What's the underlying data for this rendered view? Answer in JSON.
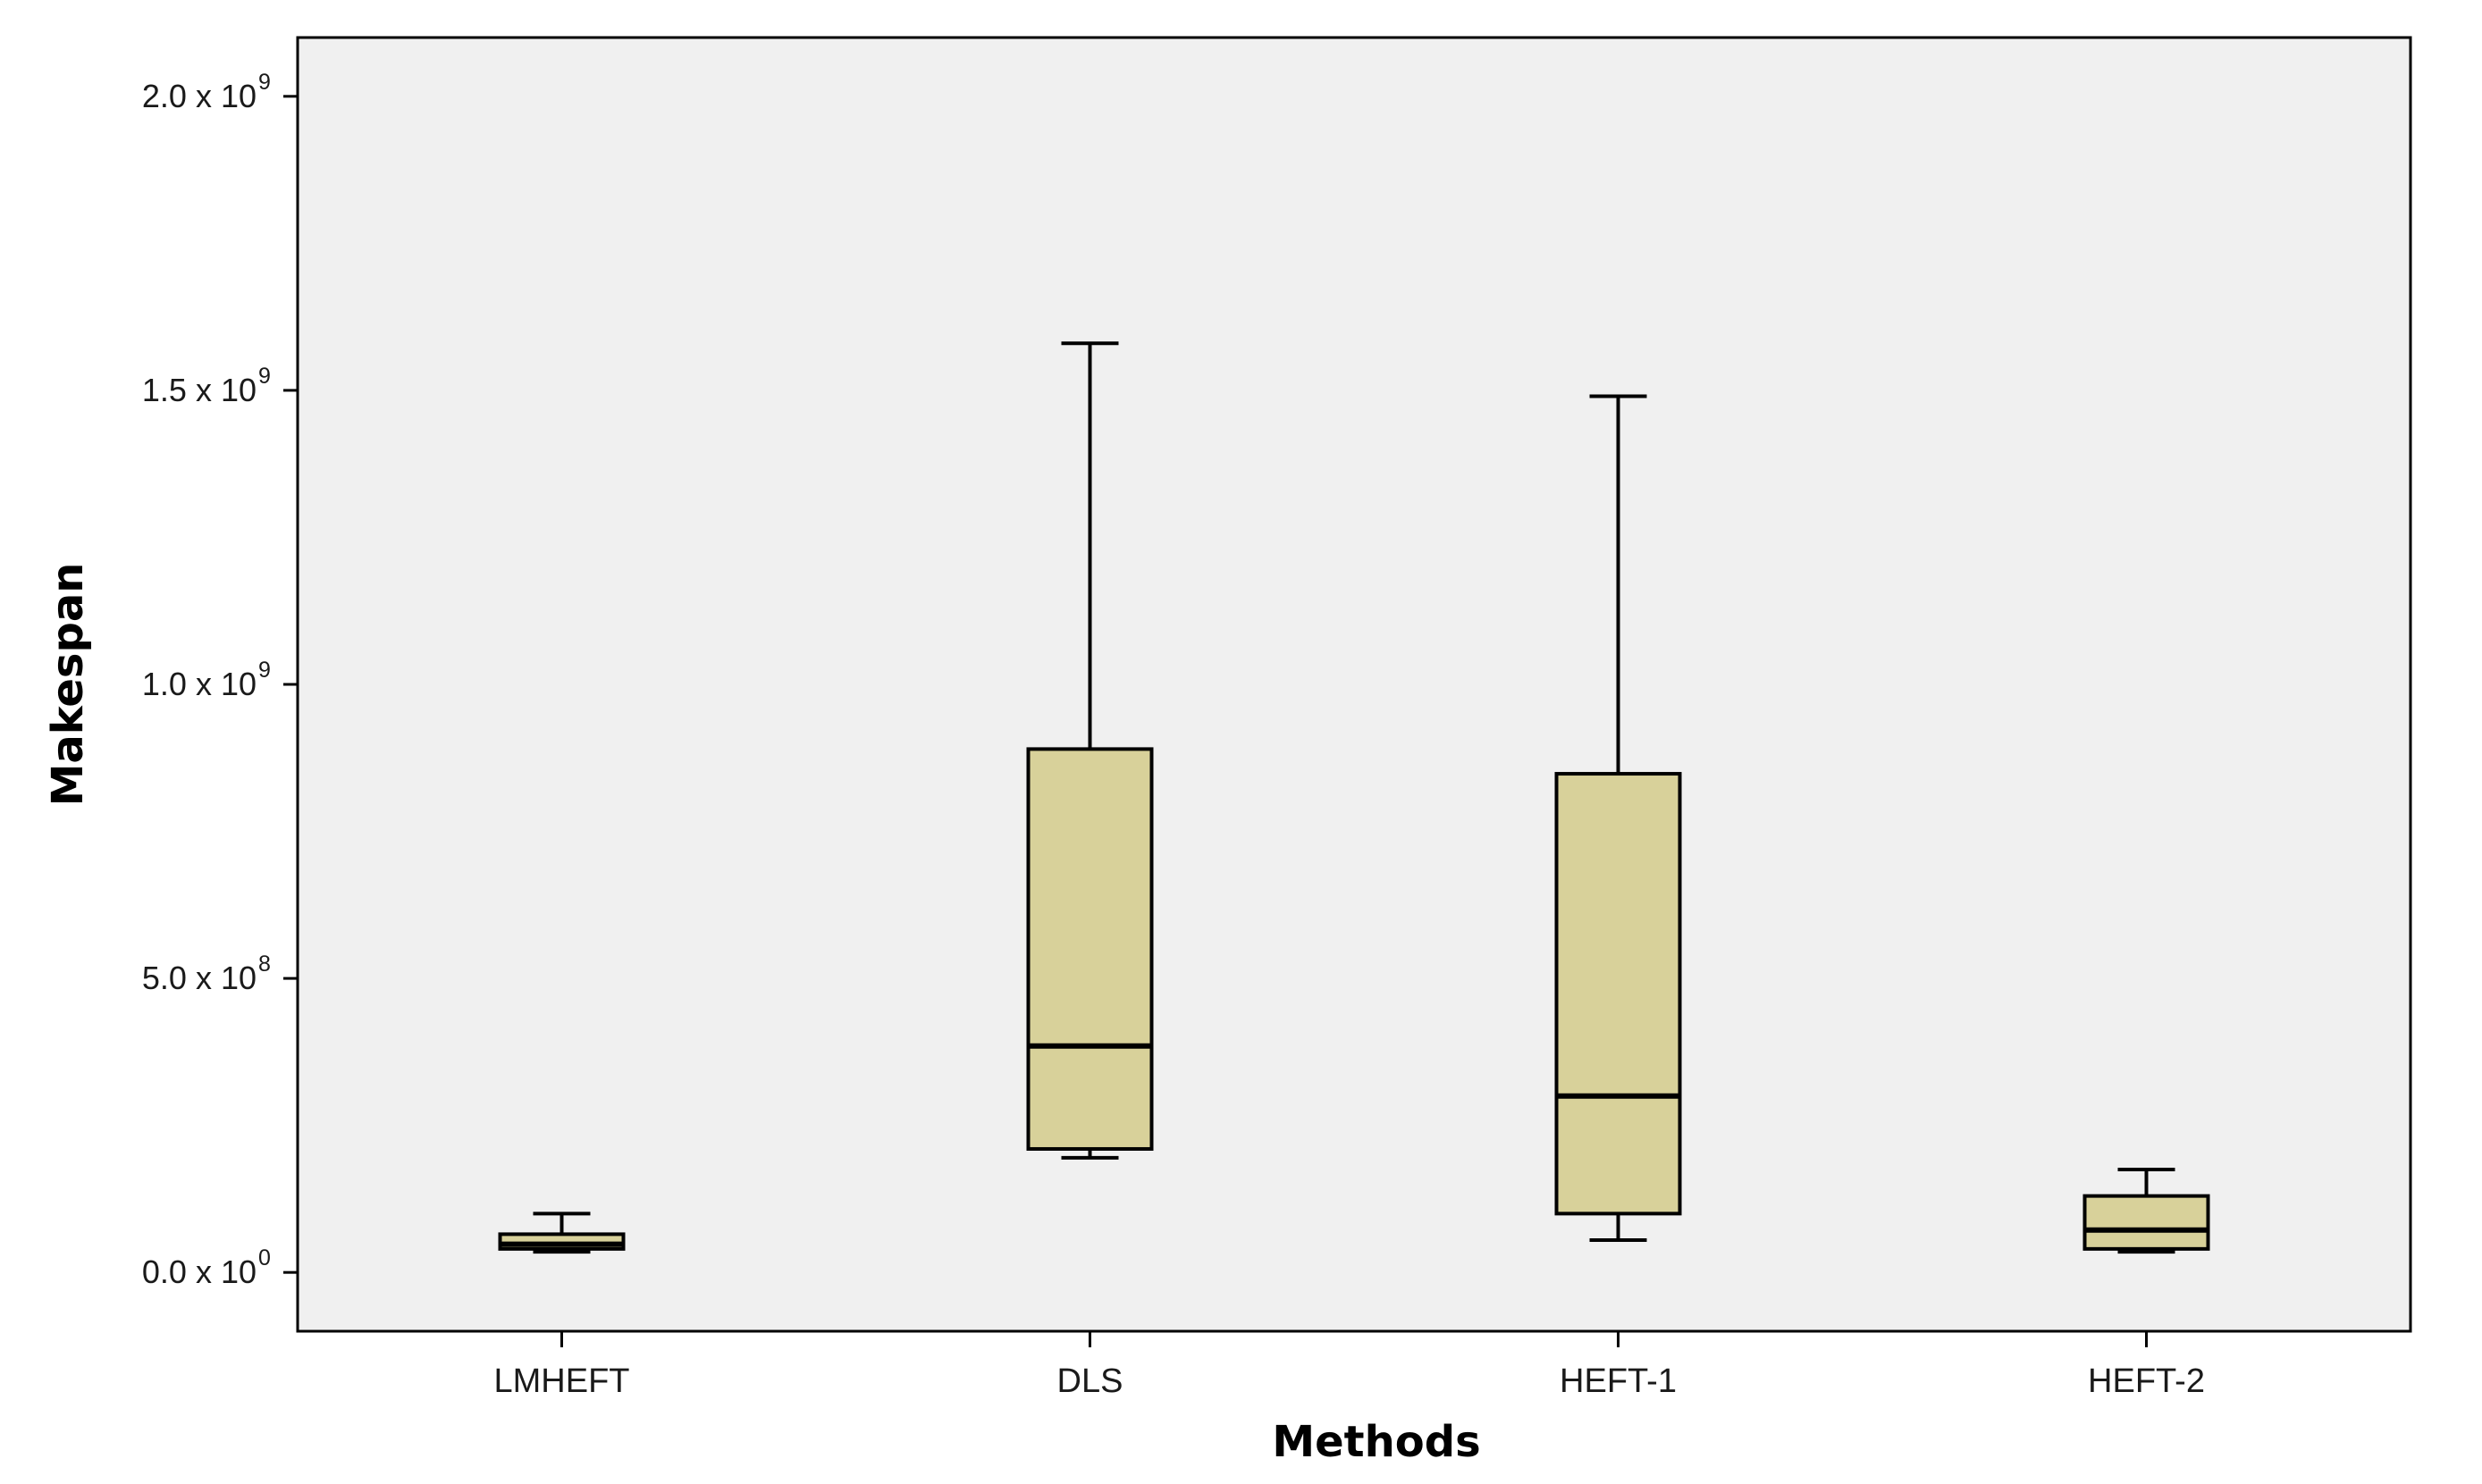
{
  "chart_data": {
    "type": "boxplot",
    "xlabel": "Methods",
    "ylabel": "Makespan",
    "ylim": [
      -100000000,
      2100000000
    ],
    "categories": [
      "LMHEFT",
      "DLS",
      "HEFT-1",
      "HEFT-2"
    ],
    "y_ticks": [
      {
        "value": 0,
        "mantissa": "0.0 x 10",
        "exp": "0"
      },
      {
        "value": 500000000,
        "mantissa": "5.0 x 10",
        "exp": "8"
      },
      {
        "value": 1000000000,
        "mantissa": "1.0 x 10",
        "exp": "9"
      },
      {
        "value": 1500000000,
        "mantissa": "1.5 x 10",
        "exp": "9"
      },
      {
        "value": 2000000000,
        "mantissa": "2.0 x 10",
        "exp": "9"
      }
    ],
    "boxes": [
      {
        "category": "LMHEFT",
        "min": 35000000,
        "q1": 40000000,
        "median": 48000000,
        "q3": 65000000,
        "max": 100000000
      },
      {
        "category": "DLS",
        "min": 195000000,
        "q1": 210000000,
        "median": 385000000,
        "q3": 890000000,
        "max": 1580000000
      },
      {
        "category": "HEFT-1",
        "min": 55000000,
        "q1": 100000000,
        "median": 300000000,
        "q3": 848000000,
        "max": 1490000000
      },
      {
        "category": "HEFT-2",
        "min": 35000000,
        "q1": 40000000,
        "median": 72000000,
        "q3": 130000000,
        "max": 175000000
      }
    ],
    "grid": false,
    "plot_background": "#f0f0f0",
    "box_fill": "#d8d19a",
    "line_color": "#000000"
  }
}
